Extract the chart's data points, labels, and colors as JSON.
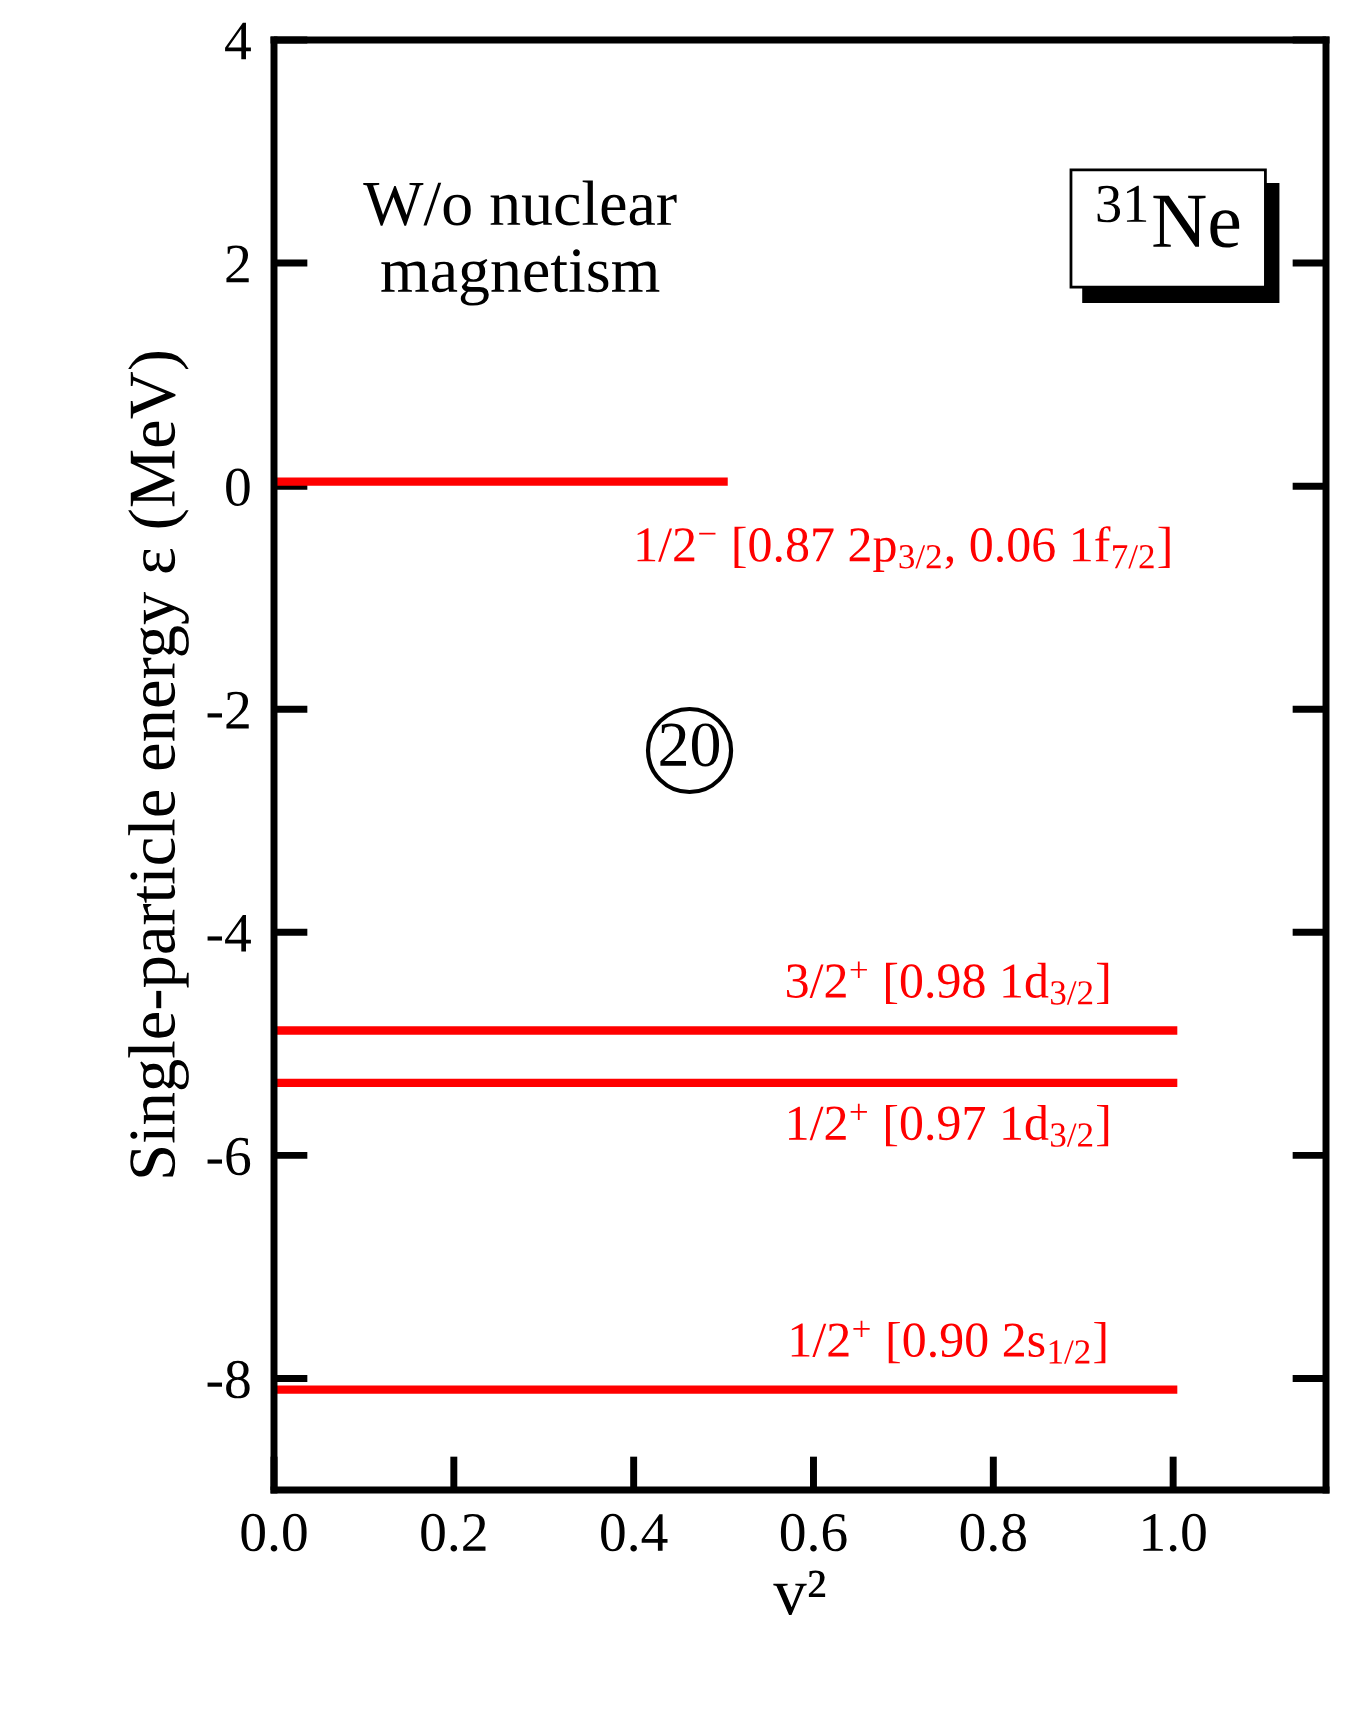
{
  "chart_data": {
    "type": "line",
    "xlabel": "v²",
    "ylabel": "Single-particle energy ε (MeV)",
    "xlim": [
      0,
      1.17
    ],
    "ylim": [
      -9,
      4
    ],
    "xticks": [
      {
        "value": 0,
        "label": "0.0"
      },
      {
        "value": 0.2,
        "label": "0.2"
      },
      {
        "value": 0.4,
        "label": "0.4"
      },
      {
        "value": 0.6,
        "label": "0.6"
      },
      {
        "value": 0.8,
        "label": "0.8"
      },
      {
        "value": 1.0,
        "label": "1.0"
      }
    ],
    "yticks": [
      4,
      2,
      0,
      -2,
      -4,
      -6,
      -8
    ],
    "grid": false,
    "legend": false,
    "marker": "none",
    "line_style": "solid",
    "series": [
      {
        "name": "1/2$^{−}$ [0.87 2p$_{3/2}$, 0.06 1f$_{7/2}$]",
        "color": "#ff0000",
        "x": [
          0,
          0.5
        ],
        "values": [
          0.04,
          0.04
        ]
      },
      {
        "name": "3/2$^{+}$ [0.98 1d$_{3/2}$]",
        "color": "#ff0000",
        "x": [
          0,
          1.0
        ],
        "values": [
          -4.88,
          -4.88
        ]
      },
      {
        "name": "1/2$^{+}$ [0.97 1d$_{3/2}$]",
        "color": "#ff0000",
        "x": [
          0,
          1.0
        ],
        "values": [
          -5.35,
          -5.35
        ]
      },
      {
        "name": "1/2$^{+}$ [0.90 2s$_{1/2}$]",
        "color": "#ff0000",
        "x": [
          0,
          1.0
        ],
        "values": [
          -8.1,
          -8.1
        ]
      }
    ],
    "annotations": [
      "W/o nuclear\nmagnetism",
      "$^{31}$Ne",
      "20"
    ]
  }
}
